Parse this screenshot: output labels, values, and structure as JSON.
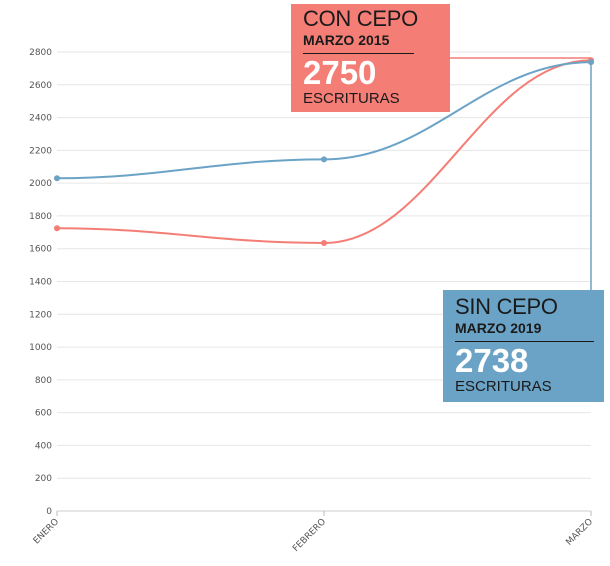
{
  "chart_data": {
    "type": "line",
    "categories": [
      "ENERO",
      "FEBRERO",
      "MARZO"
    ],
    "series": [
      {
        "name": "CON CEPO 2015",
        "color": "#f47d76",
        "values": [
          1725,
          1635,
          2750
        ]
      },
      {
        "name": "SIN CEPO 2019",
        "color": "#6ba3c6",
        "values": [
          2030,
          2145,
          2738
        ]
      }
    ],
    "ylim": [
      0,
      2800
    ],
    "yticks": [
      0,
      200,
      400,
      600,
      800,
      1000,
      1200,
      1400,
      1600,
      1800,
      2000,
      2200,
      2400,
      2600,
      2800
    ],
    "grid": true,
    "xlabel": "",
    "ylabel": ""
  },
  "callouts": {
    "con_cepo": {
      "title": "CON CEPO",
      "subtitle": "MARZO 2015",
      "value": "2750",
      "unit": "ESCRITURAS"
    },
    "sin_cepo": {
      "title": "SIN CEPO",
      "subtitle": "MARZO 2019",
      "value": "2738",
      "unit": "ESCRITURAS"
    }
  }
}
